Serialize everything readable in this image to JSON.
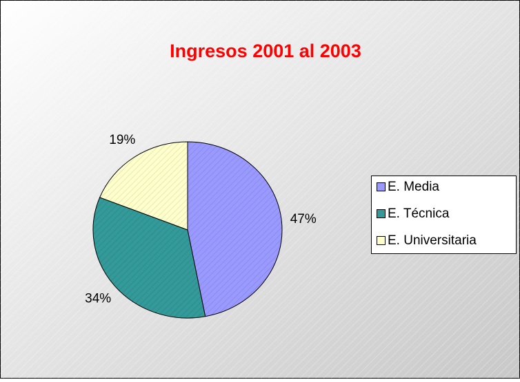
{
  "chart_data": {
    "type": "pie",
    "title": "Ingresos 2001 al 2003",
    "categories": [
      "E. Media",
      "E. Técnica",
      "E. Universitaria"
    ],
    "values": [
      47,
      34,
      19
    ],
    "value_labels": [
      "47%",
      "34%",
      "19%"
    ],
    "colors": [
      "#9999ff",
      "#339999",
      "#ffffcc"
    ],
    "legend": "right"
  }
}
